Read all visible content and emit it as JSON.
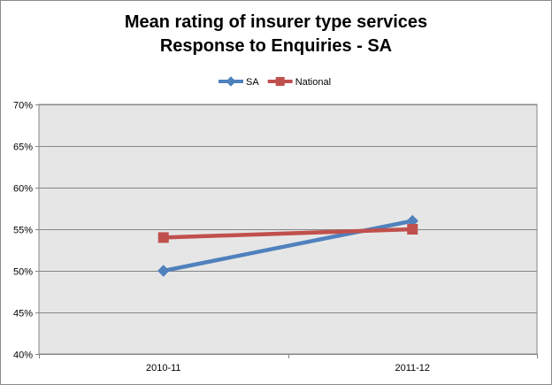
{
  "chart_data": {
    "type": "line",
    "title_lines": [
      "Mean rating of insurer type services",
      "Response to Enquiries - SA"
    ],
    "categories": [
      "2010-11",
      "2011-12"
    ],
    "series": [
      {
        "name": "SA",
        "values": [
          0.5,
          0.56
        ],
        "color": "#4f81bd",
        "marker": "diamond"
      },
      {
        "name": "National",
        "values": [
          0.54,
          0.55
        ],
        "color": "#c0504d",
        "marker": "square"
      }
    ],
    "ylim": [
      0.4,
      0.7
    ],
    "yticks": [
      0.4,
      0.45,
      0.5,
      0.55,
      0.6,
      0.65,
      0.7
    ],
    "ytick_labels": [
      "40%",
      "45%",
      "50%",
      "55%",
      "60%",
      "65%",
      "70%"
    ],
    "xlabel": "",
    "ylabel": "",
    "grid": true,
    "legend_position": "top",
    "plot_background": "#e6e6e6"
  }
}
